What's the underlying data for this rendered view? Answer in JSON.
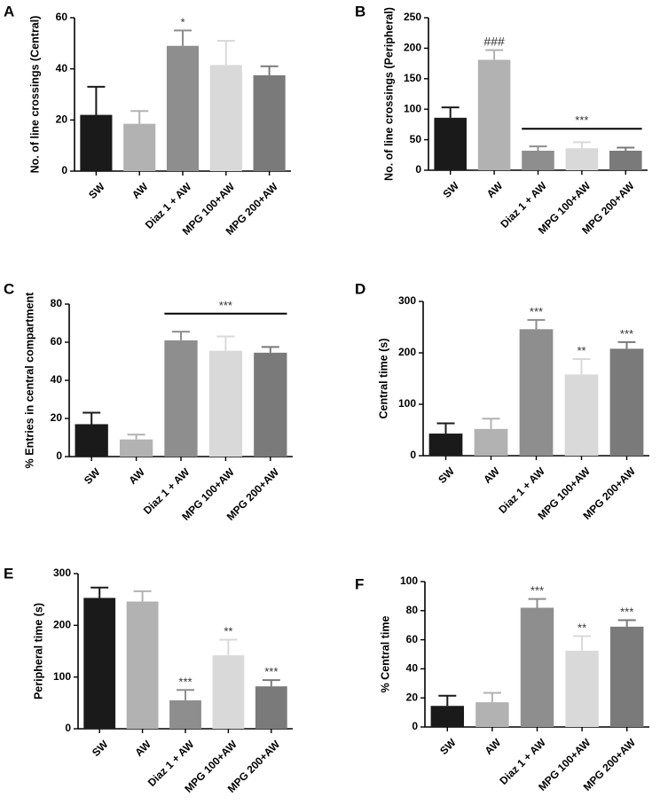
{
  "chart_data": [
    {
      "panel": "A",
      "type": "bar",
      "title": "",
      "xlabel": "",
      "ylabel": "No. of line crossings (Central)",
      "ylim": [
        0,
        60
      ],
      "yticks": [
        0,
        20,
        40,
        60
      ],
      "categories": [
        "SW",
        "AW",
        "Diaz 1 + AW",
        "MPG 100+AW",
        "MPG 200+AW"
      ],
      "values": [
        22,
        18.5,
        49,
        41.5,
        37.5
      ],
      "errors": [
        11,
        5,
        6,
        9.5,
        3.5
      ],
      "colors": [
        "#1a1a1a",
        "#b2b2b2",
        "#8e8e8e",
        "#d9d9d9",
        "#7a7a7a"
      ],
      "annotations": [
        "",
        "",
        "*",
        "",
        ""
      ],
      "bracket": null,
      "grid": false,
      "legend": "none"
    },
    {
      "panel": "B",
      "type": "bar",
      "title": "",
      "xlabel": "",
      "ylabel": "No. of line crossings (Peripheral)",
      "ylim": [
        0,
        250
      ],
      "yticks": [
        0,
        50,
        100,
        150,
        200,
        250
      ],
      "categories": [
        "SW",
        "AW",
        "Diaz 1 + AW",
        "MPG 100+AW",
        "MPG 200+AW"
      ],
      "values": [
        86,
        181,
        32,
        36,
        32
      ],
      "errors": [
        17,
        16,
        7,
        10,
        5
      ],
      "colors": [
        "#1a1a1a",
        "#b2b2b2",
        "#8e8e8e",
        "#d9d9d9",
        "#7a7a7a"
      ],
      "annotations": [
        "",
        "###",
        "",
        "",
        ""
      ],
      "bracket": {
        "from": 2,
        "to": 4,
        "label": "***",
        "y": 68
      },
      "grid": false,
      "legend": "none"
    },
    {
      "panel": "C",
      "type": "bar",
      "title": "",
      "xlabel": "",
      "ylabel": "% Entries in central compartment",
      "ylim": [
        0,
        80
      ],
      "yticks": [
        0,
        20,
        40,
        60,
        80
      ],
      "categories": [
        "SW",
        "AW",
        "Diaz 1 + AW",
        "MPG 100+AW",
        "MPG 200+AW"
      ],
      "values": [
        17,
        9,
        61,
        55.5,
        54.5
      ],
      "errors": [
        6,
        2.5,
        4.5,
        7.5,
        3
      ],
      "colors": [
        "#1a1a1a",
        "#b2b2b2",
        "#8e8e8e",
        "#d9d9d9",
        "#7a7a7a"
      ],
      "annotations": [
        "",
        "",
        "",
        "",
        ""
      ],
      "bracket": {
        "from": 2,
        "to": 4,
        "label": "***",
        "y": 75
      },
      "grid": false,
      "legend": "none"
    },
    {
      "panel": "D",
      "type": "bar",
      "title": "",
      "xlabel": "",
      "ylabel": "Central time (s)",
      "ylim": [
        0,
        300
      ],
      "yticks": [
        0,
        100,
        200,
        300
      ],
      "categories": [
        "SW",
        "AW",
        "Diaz 1 + AW",
        "MPG 100+AW",
        "MPG 200+AW"
      ],
      "values": [
        43,
        52,
        246,
        158,
        208
      ],
      "errors": [
        20,
        20,
        18,
        30,
        13
      ],
      "colors": [
        "#1a1a1a",
        "#b2b2b2",
        "#8e8e8e",
        "#d9d9d9",
        "#7a7a7a"
      ],
      "annotations": [
        "",
        "",
        "***",
        "**",
        "***"
      ],
      "bracket": null,
      "grid": false,
      "legend": "none"
    },
    {
      "panel": "E",
      "type": "bar",
      "title": "",
      "xlabel": "",
      "ylabel": "Peripheral time (s)",
      "ylim": [
        0,
        300
      ],
      "yticks": [
        0,
        100,
        200,
        300
      ],
      "categories": [
        "SW",
        "AW",
        "Diaz 1 + AW",
        "MPG 100+AW",
        "MPG 200+AW"
      ],
      "values": [
        253,
        246,
        55,
        142,
        82
      ],
      "errors": [
        20,
        20,
        20,
        30,
        12
      ],
      "colors": [
        "#1a1a1a",
        "#b2b2b2",
        "#8e8e8e",
        "#d9d9d9",
        "#7a7a7a"
      ],
      "annotations": [
        "",
        "",
        "***",
        "**",
        "***"
      ],
      "bracket": null,
      "grid": false,
      "legend": "none"
    },
    {
      "panel": "F",
      "type": "bar",
      "title": "",
      "xlabel": "",
      "ylabel": "% Central time",
      "ylim": [
        0,
        100
      ],
      "yticks": [
        0,
        20,
        40,
        60,
        80,
        100
      ],
      "categories": [
        "SW",
        "AW",
        "Diaz 1 + AW",
        "MPG 100+AW",
        "MPG 200+AW"
      ],
      "values": [
        14.5,
        17,
        82,
        52.5,
        69
      ],
      "errors": [
        7,
        6.5,
        6,
        10,
        4.5
      ],
      "colors": [
        "#1a1a1a",
        "#b2b2b2",
        "#8e8e8e",
        "#d9d9d9",
        "#7a7a7a"
      ],
      "annotations": [
        "",
        "",
        "***",
        "**",
        "***"
      ],
      "bracket": null,
      "grid": false,
      "legend": "none"
    }
  ]
}
